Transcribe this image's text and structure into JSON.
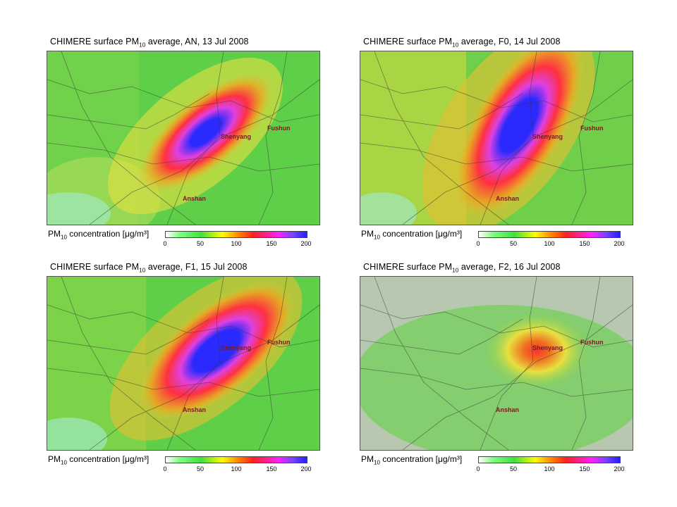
{
  "panels": [
    {
      "title_prefix": "CHIMERE surface PM",
      "title_sub": "10",
      "title_suffix": " average, AN, 13 Jul 2008",
      "plume": {
        "peak": 200,
        "elongation": "moderate"
      }
    },
    {
      "title_prefix": "CHIMERE surface PM",
      "title_sub": "10",
      "title_suffix": " average, F0, 14 Jul 2008",
      "plume": {
        "peak": 200,
        "elongation": "large"
      }
    },
    {
      "title_prefix": "CHIMERE surface PM",
      "title_sub": "10",
      "title_suffix": " average, F1, 15 Jul 2008",
      "plume": {
        "peak": 200,
        "elongation": "large"
      }
    },
    {
      "title_prefix": "CHIMERE surface PM",
      "title_sub": "10",
      "title_suffix": " average, F2, 16 Jul 2008",
      "plume": {
        "peak": 110,
        "elongation": "small"
      }
    }
  ],
  "cities": {
    "shenyang": "Shenyang",
    "fushun": "Fushun",
    "anshan": "Anshan"
  },
  "colorbar": {
    "label_prefix": "PM",
    "label_sub": "10",
    "label_suffix": " concentration ",
    "unit": "[μg/m³]",
    "ticks": [
      "0",
      "50",
      "100",
      "150",
      "200"
    ],
    "range": [
      0,
      200
    ],
    "colors": [
      "#ffffff",
      "#40e040",
      "#ffff00",
      "#ff2020",
      "#ff20ff",
      "#2020ff"
    ]
  }
}
